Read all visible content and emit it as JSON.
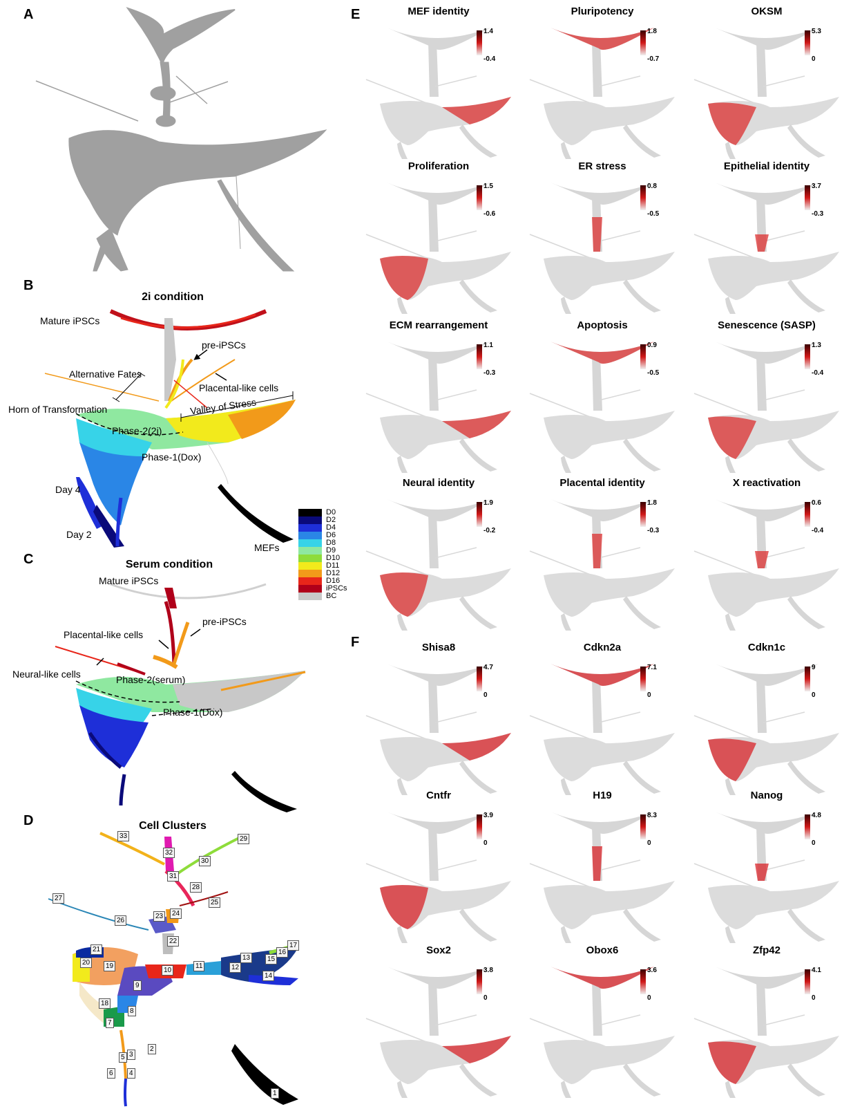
{
  "panels": {
    "A": {
      "label": "A"
    },
    "B": {
      "label": "B",
      "title": "2i condition",
      "annotations": {
        "mature": "Mature iPSCs",
        "pre": "pre-iPSCs",
        "alt": "Alternative Fates",
        "placental": "Placental-like cells",
        "horn": "Horn of Transformation",
        "valley": "Valley of Stress",
        "phase2": "Phase-2(2i)",
        "phase1": "Phase-1(Dox)",
        "day4": "Day 4",
        "day2": "Day 2",
        "mefs": "MEFs"
      }
    },
    "C": {
      "label": "C",
      "title": "Serum condition",
      "annotations": {
        "mature": "Mature iPSCs",
        "pre": "pre-iPSCs",
        "placental": "Placental-like cells",
        "neural": "Neural-like cells",
        "phase2": "Phase-2(serum)",
        "phase1": "Phase-1(Dox)"
      }
    },
    "D": {
      "label": "D",
      "title": "Cell Clusters"
    },
    "E": {
      "label": "E"
    },
    "F": {
      "label": "F"
    }
  },
  "legend": {
    "items": [
      {
        "name": "D0",
        "color": "#000000"
      },
      {
        "name": "D2",
        "color": "#0a0a7a"
      },
      {
        "name": "D4",
        "color": "#1e2fd8"
      },
      {
        "name": "D6",
        "color": "#2a86e6"
      },
      {
        "name": "D8",
        "color": "#37d3e8"
      },
      {
        "name": "D9",
        "color": "#8fe8a0"
      },
      {
        "name": "D10",
        "color": "#8edc3a"
      },
      {
        "name": "D11",
        "color": "#f2ea1c"
      },
      {
        "name": "D12",
        "color": "#f29a1a"
      },
      {
        "name": "D16",
        "color": "#e8261a"
      },
      {
        "name": "iPSCs",
        "color": "#b0001a"
      },
      {
        "name": "BC",
        "color": "#c8c8c8"
      }
    ]
  },
  "clusters": [
    "1",
    "2",
    "3",
    "4",
    "5",
    "6",
    "7",
    "8",
    "9",
    "10",
    "11",
    "12",
    "13",
    "14",
    "15",
    "16",
    "17",
    "18",
    "19",
    "20",
    "21",
    "22",
    "23",
    "24",
    "25",
    "26",
    "27",
    "28",
    "29",
    "30",
    "31",
    "32",
    "33"
  ],
  "signatures": [
    {
      "name": "MEF identity",
      "max": "1.4",
      "min": "-0.4"
    },
    {
      "name": "Pluripotency",
      "max": "1.8",
      "min": "-0.7"
    },
    {
      "name": "OKSM",
      "max": "5.3",
      "min": "0"
    },
    {
      "name": "Proliferation",
      "max": "1.5",
      "min": "-0.6"
    },
    {
      "name": "ER stress",
      "max": "0.8",
      "min": "-0.5"
    },
    {
      "name": "Epithelial identity",
      "max": "3.7",
      "min": "-0.3"
    },
    {
      "name": "ECM rearrangement",
      "max": "1.1",
      "min": "-0.3"
    },
    {
      "name": "Apoptosis",
      "max": "0.9",
      "min": "-0.5"
    },
    {
      "name": "Senescence (SASP)",
      "max": "1.3",
      "min": "-0.4"
    },
    {
      "name": "Neural identity",
      "max": "1.9",
      "min": "-0.2"
    },
    {
      "name": "Placental identity",
      "max": "1.8",
      "min": "-0.3"
    },
    {
      "name": "X reactivation",
      "max": "0.6",
      "min": "-0.4"
    }
  ],
  "genes": [
    {
      "name": "Shisa8",
      "max": "4.7",
      "min": "0"
    },
    {
      "name": "Cdkn2a",
      "max": "7.1",
      "min": "0"
    },
    {
      "name": "Cdkn1c",
      "max": "9",
      "min": "0"
    },
    {
      "name": "Cntfr",
      "max": "3.9",
      "min": "0"
    },
    {
      "name": "H19",
      "max": "8.3",
      "min": "0"
    },
    {
      "name": "Nanog",
      "max": "4.8",
      "min": "0"
    },
    {
      "name": "Sox2",
      "max": "3.8",
      "min": "0"
    },
    {
      "name": "Obox6",
      "max": "3.6",
      "min": "0"
    },
    {
      "name": "Zfp42",
      "max": "4.1",
      "min": "0"
    }
  ]
}
